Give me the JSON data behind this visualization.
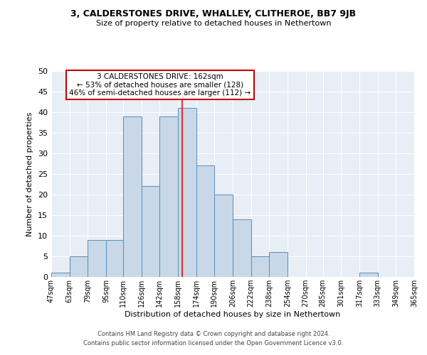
{
  "title": "3, CALDERSTONES DRIVE, WHALLEY, CLITHEROE, BB7 9JB",
  "subtitle": "Size of property relative to detached houses in Nethertown",
  "xlabel": "Distribution of detached houses by size in Nethertown",
  "ylabel": "Number of detached properties",
  "bar_edges": [
    47,
    63,
    79,
    95,
    110,
    126,
    142,
    158,
    174,
    190,
    206,
    222,
    238,
    254,
    270,
    285,
    301,
    317,
    333,
    349,
    365
  ],
  "bar_heights": [
    1,
    5,
    9,
    9,
    39,
    22,
    39,
    41,
    27,
    20,
    14,
    5,
    6,
    0,
    0,
    0,
    0,
    1,
    0,
    0
  ],
  "bar_color": "#c8d8e8",
  "bar_edge_color": "#5a8db5",
  "property_line_x": 162,
  "ylim": [
    0,
    50
  ],
  "yticks": [
    0,
    5,
    10,
    15,
    20,
    25,
    30,
    35,
    40,
    45,
    50
  ],
  "annotation_line1": "3 CALDERSTONES DRIVE: 162sqm",
  "annotation_line2": "← 53% of detached houses are smaller (128)",
  "annotation_line3": "46% of semi-detached houses are larger (112) →",
  "annotation_box_color": "#ffffff",
  "annotation_box_edge": "#cc0000",
  "footer_line1": "Contains HM Land Registry data © Crown copyright and database right 2024.",
  "footer_line2": "Contains public sector information licensed under the Open Government Licence v3.0.",
  "background_color": "#e8eef5",
  "tick_labels": [
    "47sqm",
    "63sqm",
    "79sqm",
    "95sqm",
    "110sqm",
    "126sqm",
    "142sqm",
    "158sqm",
    "174sqm",
    "190sqm",
    "206sqm",
    "222sqm",
    "238sqm",
    "254sqm",
    "270sqm",
    "285sqm",
    "301sqm",
    "317sqm",
    "333sqm",
    "349sqm",
    "365sqm"
  ],
  "title_fontsize": 9,
  "subtitle_fontsize": 8,
  "ylabel_fontsize": 8,
  "xlabel_fontsize": 8,
  "ytick_fontsize": 8,
  "xtick_fontsize": 7,
  "footer_fontsize": 6,
  "ann_fontsize": 7.5
}
